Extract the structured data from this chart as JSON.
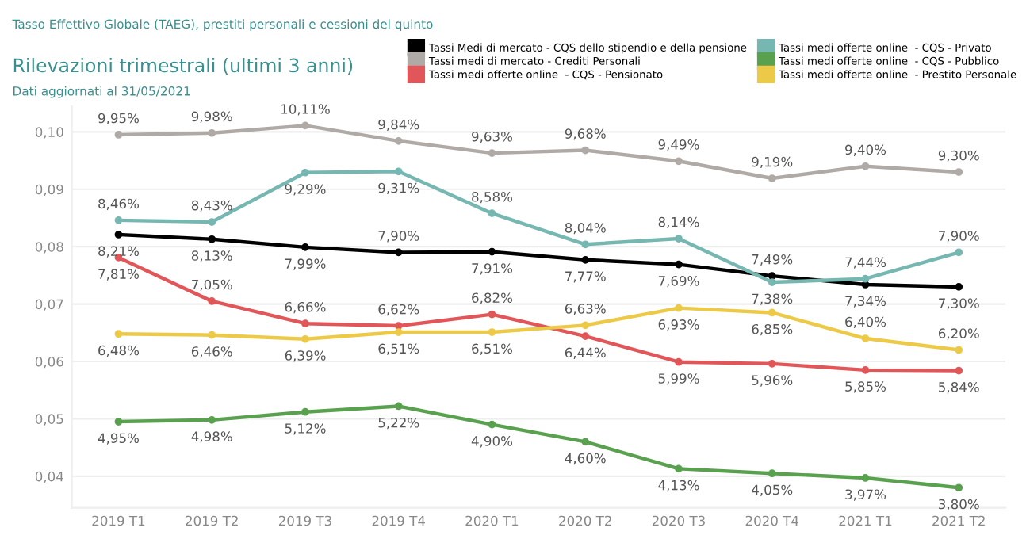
{
  "chart_data": {
    "type": "line",
    "title": "Rilevazioni trimestrali (ultimi 3 anni)",
    "subtitle": "Dati aggiornati al 31/05/2021",
    "annotations": [
      "Tasso Effettivo Globale (TAEG), prestiti personali e cessioni del quinto"
    ],
    "categories": [
      "2019 T1",
      "2019 T2",
      "2019 T3",
      "2019 T4",
      "2020 T1",
      "2020 T2",
      "2020 T3",
      "2020 T4",
      "2021 T1",
      "2021 T2"
    ],
    "series": [
      {
        "name": "Tassi Medi di mercato - CQS dello stipendio e della pensione",
        "color": "#000000",
        "values": [
          0.0821,
          0.0813,
          0.0799,
          0.079,
          0.0791,
          0.0777,
          0.0769,
          0.0749,
          0.0734,
          0.073
        ],
        "value_labels": [
          "8,21%",
          "8,13%",
          "7,99%",
          "7,90%",
          "7,91%",
          "7,77%",
          "7,69%",
          "7,49%",
          "7,34%",
          "7,30%"
        ]
      },
      {
        "name": "Tassi medi di mercato - Crediti Personali",
        "color": "#b0aaa7",
        "values": [
          0.0995,
          0.0998,
          0.1011,
          0.0984,
          0.0963,
          0.0968,
          0.0949,
          0.0919,
          0.094,
          0.093
        ],
        "value_labels": [
          "9,95%",
          "9,98%",
          "10,11%",
          "9,84%",
          "9,63%",
          "9,68%",
          "9,49%",
          "9,19%",
          "9,40%",
          "9,30%"
        ]
      },
      {
        "name": "Tassi medi offerte online  - CQS - Pensionato",
        "color": "#e15759",
        "values": [
          0.0781,
          0.0705,
          0.0666,
          0.0662,
          0.0682,
          0.0644,
          0.0599,
          0.0596,
          0.0585,
          0.0584
        ],
        "value_labels": [
          "7,81%",
          "7,05%",
          "6,66%",
          "6,62%",
          "6,82%",
          "6,44%",
          "5,99%",
          "5,96%",
          "5,85%",
          "5,84%"
        ]
      },
      {
        "name": "Tassi medi offerte online  - CQS - Privato",
        "color": "#76b7b2",
        "values": [
          0.0846,
          0.0843,
          0.0929,
          0.0931,
          0.0858,
          0.0804,
          0.0814,
          0.0738,
          0.0744,
          0.079
        ],
        "value_labels": [
          "8,46%",
          "8,43%",
          "9,29%",
          "9,31%",
          "8,58%",
          "8,04%",
          "8,14%",
          "7,38%",
          "7,44%",
          "7,90%"
        ]
      },
      {
        "name": "Tassi medi offerte online  - CQS - Pubblico",
        "color": "#59a14f",
        "values": [
          0.0495,
          0.0498,
          0.0512,
          0.0522,
          0.049,
          0.046,
          0.0413,
          0.0405,
          0.0397,
          0.038
        ],
        "value_labels": [
          "4,95%",
          "4,98%",
          "5,12%",
          "5,22%",
          "4,90%",
          "4,60%",
          "4,13%",
          "4,05%",
          "3,97%",
          "3,80%"
        ]
      },
      {
        "name": "Tassi medi offerte online  - Prestito Personale",
        "color": "#edc948",
        "values": [
          0.0648,
          0.0646,
          0.0639,
          0.0651,
          0.0651,
          0.0663,
          0.0693,
          0.0685,
          0.064,
          0.062
        ],
        "value_labels": [
          "6,48%",
          "6,46%",
          "6,39%",
          "6,51%",
          "6,51%",
          "6,63%",
          "6,93%",
          "6,85%",
          "6,40%",
          "6,20%"
        ]
      }
    ],
    "ylim": [
      0.0345,
      0.1045
    ],
    "yticks": [
      {
        "value": 0.04,
        "label": "0,04"
      },
      {
        "value": 0.05,
        "label": "0,05"
      },
      {
        "value": 0.06,
        "label": "0,06"
      },
      {
        "value": 0.07,
        "label": "0,07"
      },
      {
        "value": 0.08,
        "label": "0,08"
      },
      {
        "value": 0.09,
        "label": "0,09"
      },
      {
        "value": 0.1,
        "label": "0,10"
      }
    ],
    "grid": "y",
    "legend": "top right",
    "marker": "circle",
    "line_style": "solid"
  }
}
